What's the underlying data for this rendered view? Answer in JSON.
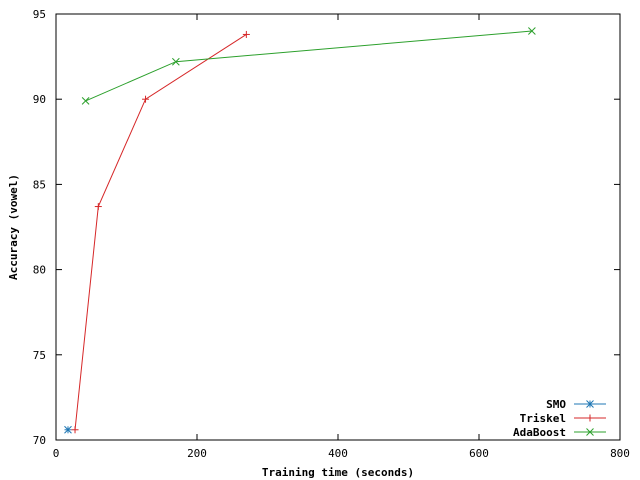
{
  "chart_data": {
    "type": "line",
    "xlabel": "Training time (seconds)",
    "ylabel": "Accuracy (vowel)",
    "xlim": [
      0,
      800
    ],
    "ylim": [
      70,
      95
    ],
    "xticks": [
      0,
      200,
      400,
      600,
      800
    ],
    "yticks": [
      70,
      75,
      80,
      85,
      90,
      95
    ],
    "grid": false,
    "legend": "bottom-right",
    "series": [
      {
        "name": "SMO",
        "color": "#1f77b4",
        "marker": "asterisk",
        "points": [
          [
            17,
            70.6
          ]
        ]
      },
      {
        "name": "Triskel",
        "color": "#d62728",
        "marker": "plus",
        "points": [
          [
            27,
            70.6
          ],
          [
            60,
            83.7
          ],
          [
            127,
            90.0
          ],
          [
            270,
            93.8
          ]
        ]
      },
      {
        "name": "AdaBoost",
        "color": "#2ca02c",
        "marker": "x",
        "points": [
          [
            42,
            89.9
          ],
          [
            170,
            92.2
          ],
          [
            675,
            94.0
          ]
        ]
      }
    ]
  }
}
